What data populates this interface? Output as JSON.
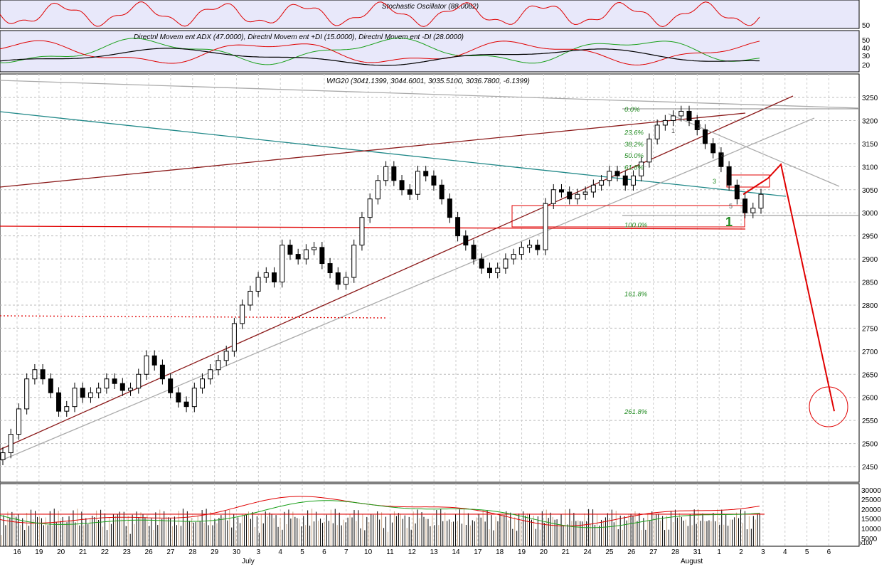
{
  "panels": {
    "stochastic": {
      "title": "Stochastic Oscillator (88.0082)",
      "scale": [
        "50"
      ]
    },
    "dmi": {
      "title": "Directnl Movem ent ADX (47.0000), Directnl Movem ent +DI (15.0000), Directnl Movem ent -DI (28.0000)",
      "scale": [
        "50",
        "40",
        "30",
        "20"
      ]
    },
    "price": {
      "title": "WIG20 (3041.1399, 3044.6001, 3035.5100, 3036.7800, -6.1399)"
    },
    "volume": {
      "scale": [
        "30000",
        "25000",
        "20000",
        "15000",
        "10000",
        "5000"
      ],
      "unit_label": "x100"
    }
  },
  "colors": {
    "red": "#e00000",
    "green": "#1aa01a",
    "darkred": "#8b1a1a",
    "teal": "#208888",
    "panel_bg": "#e8e8fa",
    "fib": "#228b22"
  },
  "chart_data": {
    "type": "candlestick",
    "title": "WIG20 (3041.1399, 3044.6001, 3035.5100, 3036.7800, -6.1399)",
    "ylim": [
      2400,
      3280
    ],
    "y_ticks": [
      3250,
      3200,
      3150,
      3100,
      3050,
      3000,
      2950,
      2900,
      2850,
      2800,
      2750,
      2700,
      2650,
      2600,
      2550,
      2500,
      2450
    ],
    "x_days": [
      "16",
      "19",
      "20",
      "21",
      "22",
      "23",
      "26",
      "27",
      "28",
      "29",
      "30",
      "3",
      "4",
      "5",
      "6",
      "7",
      "10",
      "11",
      "12",
      "13",
      "14",
      "17",
      "18",
      "19",
      "20",
      "21",
      "24",
      "25",
      "26",
      "27",
      "28",
      "31",
      "1",
      "2",
      "3",
      "4",
      "5",
      "6"
    ],
    "months": [
      "July",
      "August"
    ],
    "fib_levels": [
      {
        "label": "0.0%",
        "value": 3225
      },
      {
        "label": "23.6%",
        "value": 3175
      },
      {
        "label": "38.2%",
        "value": 3150
      },
      {
        "label": "50.0%",
        "value": 3125
      },
      {
        "label": "61.8%",
        "value": 3100
      },
      {
        "label": "100.0%",
        "value": 2975
      },
      {
        "label": "161.8%",
        "value": 2825
      },
      {
        "label": "261.8%",
        "value": 2570
      }
    ],
    "wave_labels": [
      "1",
      "2",
      "3",
      "4",
      "5"
    ],
    "big_label": "1",
    "closes": [
      2480,
      2520,
      2575,
      2640,
      2660,
      2640,
      2610,
      2570,
      2580,
      2620,
      2600,
      2610,
      2620,
      2640,
      2630,
      2615,
      2620,
      2650,
      2690,
      2670,
      2640,
      2610,
      2590,
      2580,
      2620,
      2640,
      2660,
      2680,
      2700,
      2760,
      2800,
      2830,
      2860,
      2870,
      2850,
      2930,
      2910,
      2900,
      2920,
      2925,
      2890,
      2870,
      2845,
      2860,
      2930,
      2990,
      3030,
      3070,
      3100,
      3070,
      3050,
      3040,
      3090,
      3080,
      3060,
      3030,
      2990,
      2950,
      2930,
      2900,
      2880,
      2870,
      2880,
      2900,
      2910,
      2925,
      2930,
      2920,
      3020,
      3050,
      3045,
      3030,
      3040,
      3045,
      3060,
      3070,
      3090,
      3080,
      3060,
      3080,
      3110,
      3160,
      3190,
      3200,
      3210,
      3220,
      3200,
      3180,
      3150,
      3130,
      3100,
      3060,
      3030,
      3000,
      3010,
      3040
    ],
    "proj_points": [
      [
        0,
        3040
      ],
      [
        1,
        3075
      ],
      [
        2,
        3105
      ],
      [
        3,
        2570
      ]
    ],
    "volume_ref": 17000
  }
}
